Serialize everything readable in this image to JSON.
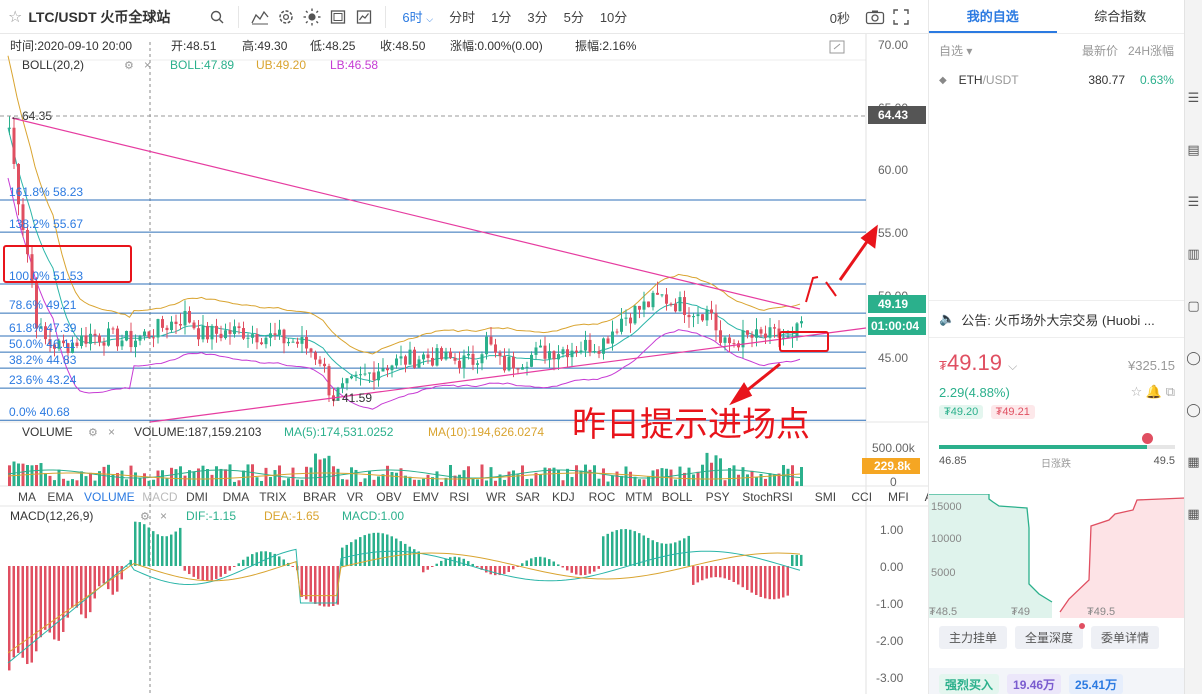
{
  "toolbar": {
    "symbol": "LTC/USDT 火币全球站",
    "intervals": [
      "6时",
      "分时",
      "1分",
      "3分",
      "5分",
      "10分"
    ],
    "seconds": "0秒"
  },
  "ohlc": {
    "time": "时间:2020-09-10 20:00",
    "open": "开:48.51",
    "high": "高:49.30",
    "low": "低:48.25",
    "close": "收:48.50",
    "change": "涨幅:0.00%(0.00)",
    "amplitude": "振幅:2.16%"
  },
  "boll": {
    "name": "BOLL(20,2)",
    "boll": "BOLL:47.89",
    "ub": "UB:49.20",
    "lb": "LB:46.58"
  },
  "fib": [
    "161.8% 58.23",
    "138.2% 55.67",
    "100.0% 51.53",
    "78.6% 49.21",
    "61.8% 47.39",
    "50.0% 46.11",
    "38.2% 44.83",
    "23.6% 43.24",
    "0.0% 40.68"
  ],
  "price_marks": {
    "high": "64.35",
    "low": "41.59"
  },
  "price_axis": [
    "70.00",
    "65.00",
    "60.00",
    "55.00",
    "50.00",
    "45.00"
  ],
  "price_tags": {
    "top": "64.43",
    "current": "49.19",
    "countdown": "01:00:04"
  },
  "annotation": "昨日提示进场点",
  "volume": {
    "name": "VOLUME",
    "value": "VOLUME:187,159.2103",
    "ma5": "MA(5):174,531.0252",
    "ma10": "MA(10):194,626.0274",
    "axis": [
      "500.00k",
      "0"
    ],
    "tag": "229.8k"
  },
  "indicator_tabs": [
    "MA",
    "EMA",
    "VOLUME",
    "MACD",
    "DMI",
    "DMA",
    "TRIX",
    "BRAR",
    "VR",
    "OBV",
    "EMV",
    "RSI",
    "WR",
    "SAR",
    "KDJ",
    "ROC",
    "MTM",
    "BOLL",
    "PSY",
    "StochRSI",
    "SMI",
    "CCI",
    "MFI",
    "ATR"
  ],
  "macd": {
    "name": "MACD(12,26,9)",
    "dif": "DIF:-1.15",
    "dea": "DEA:-1.65",
    "macd": "MACD:1.00",
    "axis": [
      "1.00",
      "0.00",
      "-1.00",
      "-2.00",
      "-3.00"
    ]
  },
  "panel": {
    "tabs": [
      "我的自选",
      "综合指数"
    ],
    "header": {
      "label": "自选",
      "col1": "最新价",
      "col2": "24H涨幅"
    },
    "watch": [
      {
        "symbol": "ETH",
        "quote": "/USDT",
        "price": "380.77",
        "change": "0.63%"
      }
    ],
    "notice": "公告: 火币场外大宗交易 (Huobi ...",
    "price": "49.19",
    "cny": "¥325.15",
    "change": "2.29(4.88%)",
    "bid": "₮49.20",
    "ask": "₮49.21",
    "range_low": "46.85",
    "range_label": "日涨跌",
    "range_high": "49.5",
    "depth_y": [
      "15000",
      "10000",
      "5000"
    ],
    "depth_x": [
      "₮48.5",
      "₮49",
      "₮49.5"
    ],
    "buttons": [
      "主力挂单",
      "全量深度",
      "委单详情"
    ],
    "bottom": [
      "强烈买入",
      "19.46万",
      "25.41万"
    ]
  },
  "colors": {
    "up": "#2bb08c",
    "down": "#e04f61",
    "accent": "#2b7ae1",
    "annotation": "#e8141b",
    "trend": "#e63ca0"
  }
}
